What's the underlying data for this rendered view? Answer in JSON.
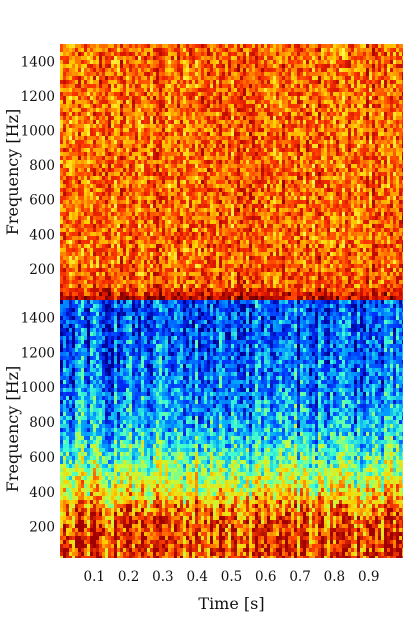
{
  "chart_data": [
    {
      "type": "heatmap",
      "panel": "top",
      "title": "",
      "xlabel": "",
      "ylabel": "Frequency [Hz]",
      "xlim": [
        0.0,
        1.0
      ],
      "ylim": [
        20,
        1500
      ],
      "yticks": [
        200,
        400,
        600,
        800,
        1000,
        1200,
        1400
      ],
      "colormap": [
        "#4a0000",
        "#8b0000",
        "#d41200",
        "#ff3b00",
        "#ff8c00",
        "#ffd200",
        "#ffff60"
      ],
      "intensity_profile": {
        "frequency_hz": [
          20,
          40,
          60,
          100,
          200,
          400,
          800,
          1500
        ],
        "mean_level": [
          0.25,
          0.25,
          0.4,
          0.55,
          0.58,
          0.58,
          0.58,
          0.58
        ]
      }
    },
    {
      "type": "heatmap",
      "panel": "bottom",
      "title": "",
      "xlabel": "Time [s]",
      "ylabel": "Frequency [Hz]",
      "xlim": [
        0.0,
        1.0
      ],
      "ylim": [
        20,
        1500
      ],
      "xticks": [
        0.1,
        0.2,
        0.3,
        0.4,
        0.5,
        0.6,
        0.7,
        0.8,
        0.9
      ],
      "yticks": [
        200,
        400,
        600,
        800,
        1000,
        1200,
        1400
      ],
      "colormap": [
        "#00008f",
        "#0030ff",
        "#00a0ff",
        "#40ffd0",
        "#c0ff40",
        "#ffd000",
        "#ff4000",
        "#a00000"
      ],
      "intensity_profile": {
        "frequency_hz": [
          20,
          100,
          200,
          300,
          400,
          500,
          600,
          700,
          800,
          1000,
          1200,
          1500
        ],
        "mean_level": [
          0.86,
          0.88,
          0.86,
          0.8,
          0.64,
          0.55,
          0.45,
          0.36,
          0.3,
          0.24,
          0.2,
          0.17
        ]
      }
    }
  ]
}
